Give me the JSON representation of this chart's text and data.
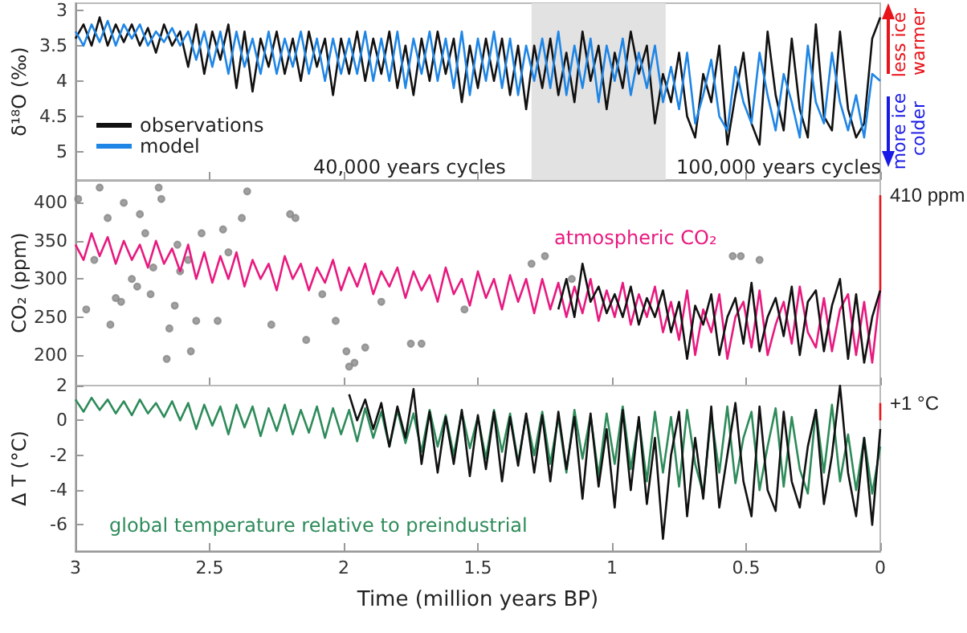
{
  "chart_data": [
    {
      "type": "line",
      "ylabel": "δ¹⁸O (‰)",
      "xlim": [
        3,
        0
      ],
      "xticks": [
        3,
        2.5,
        2,
        1.5,
        1,
        0.5,
        0
      ],
      "ylim": [
        5.4,
        2.9
      ],
      "yticks": [
        3,
        3.5,
        4,
        4.5,
        5
      ],
      "tick_labels": "y",
      "legend": "bottom left",
      "x": [
        3.0,
        2.97,
        2.94,
        2.91,
        2.88,
        2.85,
        2.82,
        2.79,
        2.76,
        2.73,
        2.7,
        2.67,
        2.64,
        2.61,
        2.58,
        2.55,
        2.52,
        2.49,
        2.46,
        2.43,
        2.4,
        2.37,
        2.34,
        2.31,
        2.28,
        2.25,
        2.22,
        2.19,
        2.16,
        2.13,
        2.1,
        2.07,
        2.04,
        2.01,
        1.98,
        1.95,
        1.92,
        1.89,
        1.86,
        1.83,
        1.8,
        1.77,
        1.74,
        1.71,
        1.68,
        1.65,
        1.62,
        1.59,
        1.56,
        1.53,
        1.5,
        1.47,
        1.44,
        1.41,
        1.38,
        1.35,
        1.32,
        1.29,
        1.26,
        1.23,
        1.2,
        1.17,
        1.14,
        1.11,
        1.08,
        1.05,
        1.02,
        0.99,
        0.96,
        0.93,
        0.9,
        0.87,
        0.84,
        0.81,
        0.78,
        0.75,
        0.72,
        0.69,
        0.66,
        0.63,
        0.6,
        0.57,
        0.54,
        0.51,
        0.48,
        0.45,
        0.42,
        0.39,
        0.36,
        0.33,
        0.3,
        0.27,
        0.24,
        0.21,
        0.18,
        0.15,
        0.12,
        0.09,
        0.06,
        0.03,
        0.0
      ],
      "series": [
        {
          "name": "observations",
          "color": "#111111",
          "values": [
            3.4,
            3.2,
            3.5,
            3.1,
            3.5,
            3.2,
            3.45,
            3.2,
            3.5,
            3.25,
            3.6,
            3.2,
            3.5,
            3.3,
            3.8,
            3.2,
            3.9,
            3.3,
            3.7,
            3.2,
            4.1,
            3.3,
            4.15,
            3.4,
            3.8,
            3.3,
            3.9,
            3.4,
            4.0,
            3.3,
            3.8,
            3.4,
            4.2,
            3.4,
            3.9,
            3.3,
            4.0,
            3.4,
            3.9,
            3.3,
            4.1,
            3.5,
            4.2,
            3.4,
            4.0,
            3.3,
            3.9,
            3.4,
            4.3,
            3.5,
            4.1,
            3.4,
            4.0,
            3.4,
            4.2,
            3.5,
            4.4,
            3.5,
            4.1,
            3.4,
            4.2,
            3.6,
            4.3,
            3.3,
            4.0,
            3.5,
            4.4,
            3.6,
            4.1,
            3.3,
            3.9,
            3.5,
            4.6,
            3.9,
            4.3,
            3.6,
            4.5,
            4.8,
            3.9,
            4.3,
            3.5,
            4.9,
            4.2,
            3.6,
            4.6,
            4.9,
            3.3,
            4.2,
            4.7,
            3.4,
            4.4,
            4.8,
            3.2,
            4.5,
            4.7,
            3.3,
            4.4,
            4.8,
            4.6,
            3.4,
            3.1
          ]
        },
        {
          "name": "model",
          "color": "#1f86e6",
          "values": [
            3.3,
            3.5,
            3.2,
            3.45,
            3.15,
            3.5,
            3.2,
            3.4,
            3.2,
            3.5,
            3.3,
            3.45,
            3.25,
            3.5,
            3.3,
            3.7,
            3.3,
            3.8,
            3.3,
            3.9,
            3.3,
            3.8,
            3.4,
            3.9,
            3.3,
            3.9,
            3.4,
            3.8,
            3.3,
            3.9,
            3.4,
            4.0,
            3.4,
            3.9,
            3.4,
            3.9,
            3.3,
            4.0,
            3.4,
            4.0,
            3.3,
            4.1,
            3.4,
            3.9,
            3.3,
            4.0,
            3.4,
            4.1,
            3.3,
            4.2,
            3.4,
            4.0,
            3.3,
            4.1,
            3.4,
            4.2,
            3.5,
            4.0,
            3.4,
            4.1,
            3.3,
            4.2,
            3.5,
            4.1,
            3.4,
            4.3,
            3.5,
            4.0,
            3.4,
            4.2,
            3.6,
            4.1,
            3.5,
            4.3,
            3.8,
            4.4,
            3.6,
            4.6,
            4.2,
            3.7,
            4.5,
            4.7,
            3.8,
            4.3,
            4.6,
            3.6,
            4.2,
            4.7,
            3.9,
            4.3,
            4.8,
            3.5,
            4.3,
            4.6,
            3.6,
            4.3,
            4.7,
            4.2,
            4.8,
            3.9,
            4.0
          ]
        }
      ],
      "bands": [
        {
          "axis": "x",
          "from": 1.3,
          "to": 0.8,
          "color": "#e2e2e2"
        }
      ],
      "annotations": [
        "40,000 years cycles",
        "100,000 years cycles",
        "less ice warmer",
        "more ice colder"
      ]
    },
    {
      "type": "line",
      "ylabel": "CO₂ (ppm)",
      "xlim": [
        3,
        0
      ],
      "xticks": [
        3,
        2.5,
        2,
        1.5,
        1,
        0.5,
        0
      ],
      "ylim": [
        160,
        430
      ],
      "yticks": [
        200,
        250,
        300,
        350,
        400
      ],
      "tick_labels": "y",
      "x": [
        3.0,
        2.97,
        2.94,
        2.91,
        2.88,
        2.85,
        2.82,
        2.79,
        2.76,
        2.73,
        2.7,
        2.67,
        2.64,
        2.61,
        2.58,
        2.55,
        2.52,
        2.49,
        2.46,
        2.43,
        2.4,
        2.37,
        2.34,
        2.31,
        2.28,
        2.25,
        2.22,
        2.19,
        2.16,
        2.13,
        2.1,
        2.07,
        2.04,
        2.01,
        1.98,
        1.95,
        1.92,
        1.89,
        1.86,
        1.83,
        1.8,
        1.77,
        1.74,
        1.71,
        1.68,
        1.65,
        1.62,
        1.59,
        1.56,
        1.53,
        1.5,
        1.47,
        1.44,
        1.41,
        1.38,
        1.35,
        1.32,
        1.29,
        1.26,
        1.23,
        1.2,
        1.17,
        1.14,
        1.11,
        1.08,
        1.05,
        1.02,
        0.99,
        0.96,
        0.93,
        0.9,
        0.87,
        0.84,
        0.81,
        0.78,
        0.75,
        0.72,
        0.69,
        0.66,
        0.63,
        0.6,
        0.57,
        0.54,
        0.51,
        0.48,
        0.45,
        0.42,
        0.39,
        0.36,
        0.33,
        0.3,
        0.27,
        0.24,
        0.21,
        0.18,
        0.15,
        0.12,
        0.09,
        0.06,
        0.03,
        0.0
      ],
      "series": [
        {
          "type": "scatter",
          "color": "#888888",
          "x": [
            2.99,
            2.96,
            2.93,
            2.91,
            2.88,
            2.87,
            2.85,
            2.83,
            2.82,
            2.79,
            2.77,
            2.76,
            2.74,
            2.72,
            2.71,
            2.69,
            2.68,
            2.66,
            2.65,
            2.63,
            2.62,
            2.61,
            2.58,
            2.57,
            2.55,
            2.53,
            2.47,
            2.45,
            2.43,
            2.38,
            2.36,
            2.27,
            2.2,
            2.18,
            2.14,
            2.08,
            2.03,
            1.99,
            1.98,
            1.96,
            1.92,
            1.86,
            1.75,
            1.71,
            1.55,
            1.3,
            1.25,
            1.15,
            0.55,
            0.52,
            0.45
          ],
          "values": [
            405,
            260,
            325,
            420,
            380,
            240,
            275,
            270,
            400,
            300,
            290,
            385,
            360,
            280,
            315,
            420,
            405,
            195,
            235,
            265,
            345,
            310,
            325,
            205,
            245,
            360,
            245,
            365,
            335,
            380,
            415,
            240,
            385,
            380,
            220,
            280,
            245,
            205,
            185,
            190,
            210,
            270,
            215,
            215,
            260,
            320,
            330,
            300,
            330,
            330,
            325
          ]
        },
        {
          "name": "atmospheric CO₂",
          "color": "#e8197f",
          "values": [
            345,
            325,
            360,
            330,
            355,
            320,
            350,
            325,
            345,
            315,
            350,
            320,
            340,
            310,
            345,
            300,
            335,
            295,
            330,
            300,
            335,
            290,
            325,
            300,
            320,
            285,
            330,
            300,
            320,
            285,
            315,
            295,
            325,
            285,
            315,
            290,
            320,
            280,
            310,
            290,
            315,
            275,
            310,
            285,
            305,
            270,
            315,
            280,
            300,
            265,
            310,
            275,
            300,
            260,
            305,
            270,
            300,
            255,
            300,
            260,
            295,
            250,
            290,
            255,
            300,
            245,
            285,
            250,
            295,
            240,
            280,
            250,
            290,
            230,
            270,
            220,
            285,
            200,
            260,
            230,
            280,
            195,
            250,
            270,
            210,
            285,
            200,
            240,
            270,
            215,
            290,
            230,
            210,
            275,
            205,
            260,
            280,
            200,
            270,
            190,
            285
          ]
        },
        {
          "color": "#111111",
          "x": [
            1.2,
            1.17,
            1.14,
            1.11,
            1.08,
            1.05,
            1.02,
            0.99,
            0.96,
            0.93,
            0.9,
            0.87,
            0.84,
            0.81,
            0.78,
            0.75,
            0.72,
            0.69,
            0.66,
            0.63,
            0.6,
            0.57,
            0.54,
            0.51,
            0.48,
            0.45,
            0.42,
            0.39,
            0.36,
            0.33,
            0.3,
            0.27,
            0.24,
            0.21,
            0.18,
            0.15,
            0.12,
            0.09,
            0.06,
            0.03,
            0.0
          ],
          "values": [
            260,
            300,
            250,
            320,
            270,
            290,
            255,
            280,
            250,
            290,
            240,
            275,
            250,
            285,
            230,
            270,
            195,
            265,
            240,
            280,
            200,
            250,
            275,
            215,
            295,
            205,
            250,
            275,
            225,
            290,
            200,
            270,
            285,
            205,
            265,
            300,
            195,
            280,
            190,
            250,
            285
          ]
        },
        {
          "color": "#e8141b",
          "x": [
            0,
            0
          ],
          "values": [
            285,
            410
          ]
        }
      ],
      "annotations": [
        {
          "text": "410 ppm",
          "x": 0,
          "y": 410
        }
      ]
    },
    {
      "type": "line",
      "ylabel": "Δ T (°C)",
      "xlabel": "Time (million years BP)",
      "xlim": [
        3,
        0
      ],
      "xticks": [
        3,
        2.5,
        2,
        1.5,
        1,
        0.5,
        0
      ],
      "ylim": [
        -7.5,
        2
      ],
      "yticks": [
        2,
        0,
        -2,
        -4,
        -6
      ],
      "x": [
        3.0,
        2.97,
        2.94,
        2.91,
        2.88,
        2.85,
        2.82,
        2.79,
        2.76,
        2.73,
        2.7,
        2.67,
        2.64,
        2.61,
        2.58,
        2.55,
        2.52,
        2.49,
        2.46,
        2.43,
        2.4,
        2.37,
        2.34,
        2.31,
        2.28,
        2.25,
        2.22,
        2.19,
        2.16,
        2.13,
        2.1,
        2.07,
        2.04,
        2.01,
        1.98,
        1.95,
        1.92,
        1.89,
        1.86,
        1.83,
        1.8,
        1.77,
        1.74,
        1.71,
        1.68,
        1.65,
        1.62,
        1.59,
        1.56,
        1.53,
        1.5,
        1.47,
        1.44,
        1.41,
        1.38,
        1.35,
        1.32,
        1.29,
        1.26,
        1.23,
        1.2,
        1.17,
        1.14,
        1.11,
        1.08,
        1.05,
        1.02,
        0.99,
        0.96,
        0.93,
        0.9,
        0.87,
        0.84,
        0.81,
        0.78,
        0.75,
        0.72,
        0.69,
        0.66,
        0.63,
        0.6,
        0.57,
        0.54,
        0.51,
        0.48,
        0.45,
        0.42,
        0.39,
        0.36,
        0.33,
        0.3,
        0.27,
        0.24,
        0.21,
        0.18,
        0.15,
        0.12,
        0.09,
        0.06,
        0.03,
        0.0
      ],
      "series": [
        {
          "name": "global temperature relative to preindustrial",
          "color": "#2e8b5a",
          "values": [
            1.2,
            0.5,
            1.3,
            0.6,
            1.2,
            0.4,
            1.1,
            0.3,
            1.2,
            0.4,
            1.0,
            0.2,
            1.1,
            0.0,
            1.0,
            -0.5,
            0.9,
            -0.3,
            0.8,
            -0.8,
            0.9,
            -0.4,
            0.8,
            -0.9,
            0.7,
            -0.6,
            0.9,
            -0.8,
            0.6,
            -0.7,
            0.8,
            -1.0,
            0.7,
            -0.8,
            0.6,
            -1.2,
            0.7,
            -1.0,
            0.5,
            -1.5,
            0.6,
            -1.3,
            0.4,
            -1.8,
            0.6,
            -1.5,
            0.3,
            -2.0,
            0.5,
            -1.6,
            0.2,
            -2.2,
            0.6,
            -1.8,
            0.4,
            -2.4,
            0.3,
            -2.0,
            0.5,
            -2.5,
            0.2,
            -3.0,
            0.6,
            -2.2,
            0.3,
            -3.2,
            0.4,
            -2.5,
            0.8,
            -2.8,
            0.1,
            -3.5,
            0.5,
            -3.0,
            0.2,
            -3.8,
            0.6,
            -2.5,
            -4.2,
            0.3,
            -3.0,
            0.8,
            -3.6,
            -1.0,
            0.5,
            -4.0,
            -1.5,
            0.7,
            -3.8,
            0.2,
            -2.8,
            -4.2,
            0.6,
            -3.0,
            0.9,
            -3.5,
            -0.8,
            -4.0,
            -1.0,
            -4.2,
            -1.5
          ]
        },
        {
          "color": "#111111",
          "x": [
            1.98,
            1.95,
            1.92,
            1.89,
            1.86,
            1.83,
            1.8,
            1.77,
            1.74,
            1.71,
            1.68,
            1.65,
            1.62,
            1.59,
            1.56,
            1.53,
            1.5,
            1.47,
            1.44,
            1.41,
            1.38,
            1.35,
            1.32,
            1.29,
            1.26,
            1.23,
            1.2,
            1.17,
            1.14,
            1.11,
            1.08,
            1.05,
            1.02,
            0.99,
            0.96,
            0.93,
            0.9,
            0.87,
            0.84,
            0.81,
            0.78,
            0.75,
            0.72,
            0.69,
            0.66,
            0.63,
            0.6,
            0.57,
            0.54,
            0.51,
            0.48,
            0.45,
            0.42,
            0.39,
            0.36,
            0.33,
            0.3,
            0.27,
            0.24,
            0.21,
            0.18,
            0.15,
            0.12,
            0.09,
            0.06,
            0.03,
            0.0
          ],
          "values": [
            1.5,
            0.0,
            1.2,
            -0.5,
            1.0,
            -1.5,
            0.8,
            -1.0,
            1.8,
            -2.5,
            0.5,
            -3.0,
            0.2,
            -2.5,
            0.6,
            -3.2,
            0.3,
            -2.8,
            0.5,
            -3.5,
            0.2,
            -2.6,
            0.4,
            -3.0,
            0.3,
            -3.5,
            0.5,
            -2.8,
            0.2,
            -4.5,
            0.4,
            -3.8,
            -0.5,
            -5.0,
            0.6,
            -4.0,
            0.2,
            -4.8,
            -1.0,
            -6.8,
            -2.0,
            0.5,
            -5.5,
            -1.0,
            -4.5,
            0.8,
            -5.0,
            -2.0,
            1.0,
            -3.5,
            -5.5,
            0.8,
            -4.0,
            -5.2,
            0.5,
            -3.5,
            -5.0,
            -1.5,
            0.6,
            -4.8,
            -2.0,
            2.0,
            -3.0,
            -5.5,
            -1.0,
            -6.0,
            -0.5
          ]
        },
        {
          "color": "#e8141b",
          "x": [
            0,
            0
          ],
          "values": [
            0,
            1
          ]
        }
      ],
      "annotations": [
        {
          "text": "+1 °C",
          "x": 0,
          "y": 1
        }
      ]
    }
  ]
}
